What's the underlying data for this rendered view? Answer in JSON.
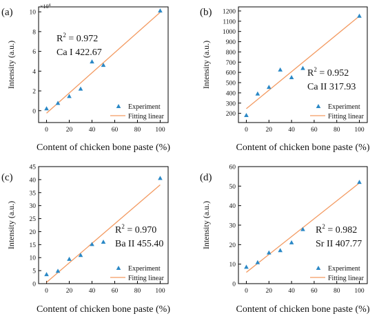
{
  "colors": {
    "marker": "#2a88c6",
    "fit": "#f39a61",
    "axis": "#000000"
  },
  "common": {
    "xlabel": "Content of chicken bone paste (%)",
    "ylabel": "Intensity (a.u.)",
    "legend_experiment": "Experiment",
    "legend_fit": "Fitting linear",
    "r2_prefix": "R",
    "r2_sup": "2"
  },
  "chart_data": [
    {
      "type": "scatter",
      "panel": "(a)",
      "r2_value": " = 0.972",
      "line_name": "Ca I 422.67",
      "y_multiplier": "×10",
      "y_multiplier_exp": "4",
      "xlim": [
        -7,
        107
      ],
      "ylim": [
        -1.2,
        10.5
      ],
      "xticks": [
        0,
        20,
        40,
        60,
        80,
        100
      ],
      "xtick_labels": [
        "0",
        "20",
        "40",
        "60",
        "80",
        "100"
      ],
      "yticks": [
        0,
        2,
        4,
        6,
        8,
        10
      ],
      "ytick_labels": [
        "0",
        "2",
        "4",
        "6",
        "8",
        "10"
      ],
      "series": [
        {
          "x": [
            0,
            10,
            20,
            30,
            40,
            50,
            100
          ],
          "y": [
            0.2,
            0.75,
            1.45,
            2.2,
            4.95,
            4.6,
            10.1
          ]
        }
      ],
      "fit": {
        "x": [
          0,
          100
        ],
        "y": [
          -0.25,
          9.95
        ]
      }
    },
    {
      "type": "scatter",
      "panel": "(b)",
      "r2_value": " = 0.952",
      "line_name": "Ca II 317.93",
      "xlim": [
        -7,
        107
      ],
      "ylim": [
        110,
        1240
      ],
      "xticks": [
        0,
        20,
        40,
        60,
        80,
        100
      ],
      "xtick_labels": [
        "0",
        "20",
        "40",
        "60",
        "80",
        "100"
      ],
      "yticks": [
        200,
        300,
        400,
        500,
        600,
        700,
        800,
        900,
        1000,
        1100,
        1200
      ],
      "ytick_labels": [
        "200",
        "300",
        "400",
        "500",
        "600",
        "700",
        "800",
        "900",
        "1000",
        "1100",
        "1200"
      ],
      "series": [
        {
          "x": [
            0,
            10,
            20,
            30,
            40,
            50,
            100
          ],
          "y": [
            180,
            390,
            455,
            625,
            550,
            640,
            1150
          ]
        }
      ],
      "fit": {
        "x": [
          0,
          100
        ],
        "y": [
          245,
          1150
        ]
      }
    },
    {
      "type": "scatter",
      "panel": "(c)",
      "r2_value": " = 0.970",
      "line_name": "Ba II 455.40",
      "xlim": [
        -7,
        107
      ],
      "ylim": [
        0,
        45
      ],
      "xticks": [
        0,
        20,
        40,
        60,
        80,
        100
      ],
      "xtick_labels": [
        "0",
        "20",
        "40",
        "60",
        "80",
        "100"
      ],
      "yticks": [
        0,
        5,
        10,
        15,
        20,
        25,
        30,
        35,
        40,
        45
      ],
      "ytick_labels": [
        "0",
        "5",
        "10",
        "15",
        "20",
        "25",
        "30",
        "35",
        "40",
        "45"
      ],
      "series": [
        {
          "x": [
            0,
            10,
            20,
            30,
            40,
            50,
            100
          ],
          "y": [
            3.5,
            4.8,
            9.4,
            10.9,
            15.1,
            16.0,
            40.5
          ]
        }
      ],
      "fit": {
        "x": [
          0,
          100
        ],
        "y": [
          0.5,
          38.0
        ]
      }
    },
    {
      "type": "scatter",
      "panel": "(d)",
      "r2_value": " = 0.982",
      "line_name": "Sr II 407.77",
      "xlim": [
        -7,
        107
      ],
      "ylim": [
        0,
        60
      ],
      "xticks": [
        0,
        20,
        40,
        60,
        80,
        100
      ],
      "xtick_labels": [
        "0",
        "20",
        "40",
        "60",
        "80",
        "100"
      ],
      "yticks": [
        0,
        10,
        20,
        30,
        40,
        50,
        60
      ],
      "ytick_labels": [
        "0",
        "10",
        "20",
        "30",
        "40",
        "50",
        "60"
      ],
      "series": [
        {
          "x": [
            0,
            10,
            20,
            30,
            40,
            50,
            100
          ],
          "y": [
            8.5,
            10.8,
            15.8,
            17.0,
            21.0,
            27.8,
            52.0
          ]
        }
      ],
      "fit": {
        "x": [
          0,
          100
        ],
        "y": [
          5.8,
          51.6
        ]
      }
    }
  ]
}
